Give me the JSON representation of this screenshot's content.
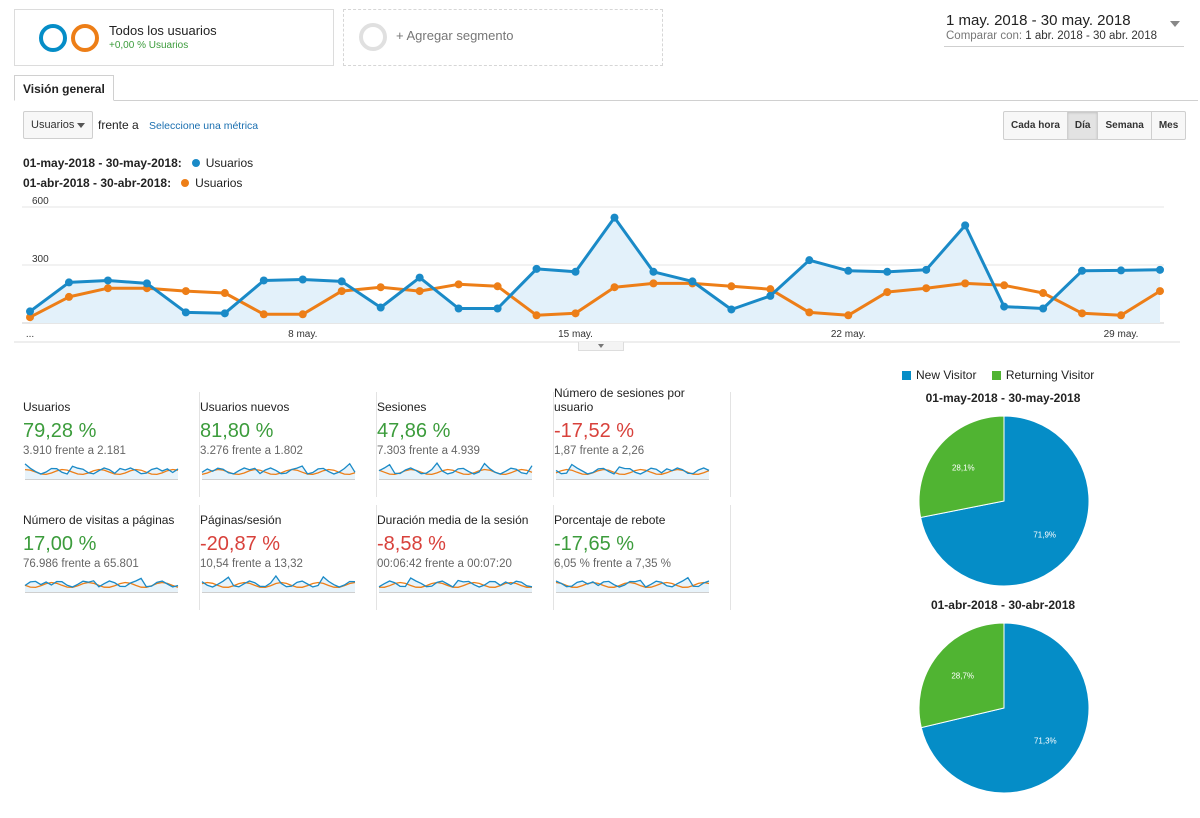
{
  "segments": {
    "active": {
      "title": "Todos los usuarios",
      "subtitle": "+0,00 % Usuarios",
      "ring_colors": [
        "#058dc7",
        "#ed7e17"
      ]
    },
    "add_label": "+ Agregar segmento"
  },
  "date_range": {
    "main": "1 may. 2018 - 30 may. 2018",
    "compare_prefix": "Comparar con:",
    "compare_value": "1 abr. 2018 - 30 abr. 2018"
  },
  "tab": "Visión general",
  "metric_selector": {
    "value": "Usuarios",
    "vs_label": "frente a",
    "select_link": "Seleccione una métrica"
  },
  "granularity": {
    "options": [
      "Cada hora",
      "Día",
      "Semana",
      "Mes"
    ],
    "active": "Día"
  },
  "chart_legend": [
    {
      "range": "01-may-2018 - 30-may-2018:",
      "metric": "Usuarios",
      "color": "#1a8ac7"
    },
    {
      "range": "01-abr-2018 - 30-abr-2018:",
      "metric": "Usuarios",
      "color": "#ed7e17"
    }
  ],
  "chart_data": {
    "type": "line",
    "x": [
      1,
      2,
      3,
      4,
      5,
      6,
      7,
      8,
      9,
      10,
      11,
      12,
      13,
      14,
      15,
      16,
      17,
      18,
      19,
      20,
      21,
      22,
      23,
      24,
      25,
      26,
      27,
      28,
      29,
      30
    ],
    "x_tick_labels": [
      {
        "at": 1,
        "label": "..."
      },
      {
        "at": 8,
        "label": "8 may."
      },
      {
        "at": 15,
        "label": "15 may."
      },
      {
        "at": 22,
        "label": "22 may."
      },
      {
        "at": 29,
        "label": "29 may."
      }
    ],
    "y_ticks": [
      300,
      600
    ],
    "ylim": [
      0,
      600
    ],
    "grid": true,
    "series": [
      {
        "name": "Usuarios",
        "range": "01-may-2018 - 30-may-2018",
        "color": "#1a8ac7",
        "fill": true,
        "values": [
          60,
          210,
          220,
          205,
          55,
          50,
          220,
          225,
          215,
          80,
          235,
          75,
          75,
          280,
          265,
          545,
          265,
          215,
          70,
          140,
          325,
          270,
          265,
          275,
          505,
          85,
          75,
          270,
          272,
          275
        ]
      },
      {
        "name": "Usuarios",
        "range": "01-abr-2018 - 30-abr-2018",
        "color": "#ed7e17",
        "fill": false,
        "values": [
          30,
          135,
          180,
          180,
          165,
          155,
          45,
          45,
          165,
          185,
          165,
          200,
          190,
          40,
          50,
          185,
          205,
          205,
          190,
          175,
          55,
          40,
          160,
          180,
          205,
          195,
          155,
          50,
          40,
          165
        ]
      }
    ]
  },
  "metrics": [
    {
      "name": "Usuarios",
      "value": "79,28 %",
      "trend": "pos",
      "compare": "3.910 frente a 2.181"
    },
    {
      "name": "Usuarios nuevos",
      "value": "81,80 %",
      "trend": "pos",
      "compare": "3.276 frente a 1.802"
    },
    {
      "name": "Sesiones",
      "value": "47,86 %",
      "trend": "pos",
      "compare": "7.303 frente a 4.939"
    },
    {
      "name": "Número de sesiones por usuario",
      "value": "-17,52 %",
      "trend": "neg",
      "compare": "1,87 frente a 2,26"
    },
    {
      "name": "Número de visitas a páginas",
      "value": "17,00 %",
      "trend": "pos",
      "compare": "76.986 frente a 65.801"
    },
    {
      "name": "Páginas/sesión",
      "value": "-20,87 %",
      "trend": "neg",
      "compare": "10,54 frente a 13,32"
    },
    {
      "name": "Duración media de la sesión",
      "value": "-8,58 %",
      "trend": "neg",
      "compare": "00:06:42 frente a 00:07:20"
    },
    {
      "name": "Porcentaje de rebote",
      "value": "-17,65 %",
      "trend": "pos",
      "compare": "6,05 % frente a 7,35 %"
    }
  ],
  "pie_legend": [
    {
      "label": "New Visitor",
      "color": "#058dc7"
    },
    {
      "label": "Returning Visitor",
      "color": "#50b432"
    }
  ],
  "pies": [
    {
      "title": "01-may-2018 - 30-may-2018",
      "slices": [
        {
          "label": "71,9%",
          "value": 71.9,
          "color": "#058dc7"
        },
        {
          "label": "28,1%",
          "value": 28.1,
          "color": "#50b432"
        }
      ]
    },
    {
      "title": "01-abr-2018 - 30-abr-2018",
      "slices": [
        {
          "label": "71,3%",
          "value": 71.3,
          "color": "#058dc7"
        },
        {
          "label": "28,7%",
          "value": 28.7,
          "color": "#50b432"
        }
      ]
    }
  ]
}
